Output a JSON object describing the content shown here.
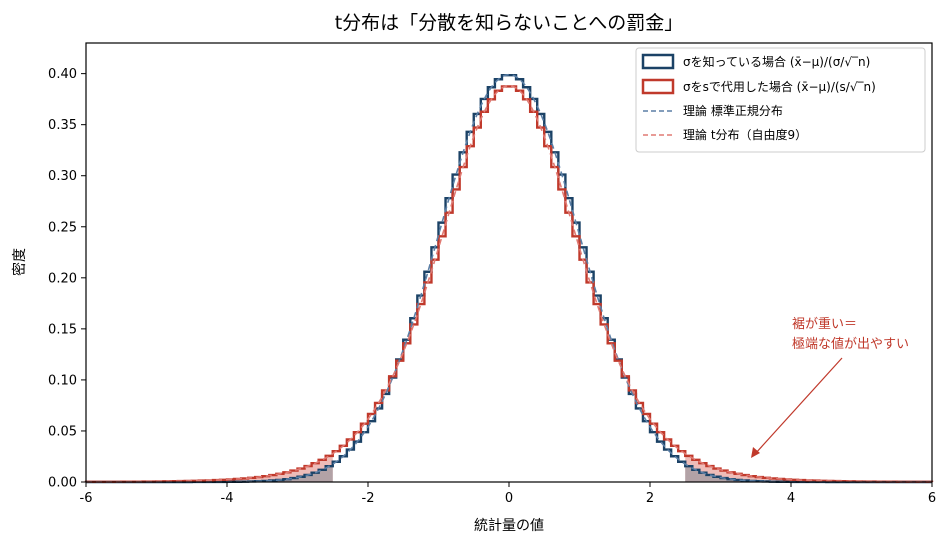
{
  "chart_data": {
    "type": "histogram",
    "title": "t分布は「分散を知らないことへの罰金」",
    "xlabel": "統計量の値",
    "ylabel": "密度",
    "xlim": [
      -6,
      6
    ],
    "ylim": [
      0,
      0.43
    ],
    "xticks": [
      -6,
      -4,
      -2,
      0,
      2,
      4,
      6
    ],
    "xtick_labels": [
      "-6",
      "-4",
      "-2",
      "0",
      "2",
      "4",
      "6"
    ],
    "yticks": [
      0,
      0.05,
      0.1,
      0.15,
      0.2,
      0.25,
      0.3,
      0.35,
      0.4
    ],
    "ytick_labels": [
      "0.00",
      "0.05",
      "0.10",
      "0.15",
      "0.20",
      "0.25",
      "0.30",
      "0.35",
      "0.40"
    ],
    "grid": false,
    "legend_position": "top-right",
    "series": [
      {
        "name": "σを知っている場合 (x̄−μ)/(σ/√‾n)",
        "kind": "step-histogram",
        "color": "#1b4266",
        "distribution": "normal",
        "df": null,
        "bin_width": 0.1
      },
      {
        "name": "σをsで代用した場合 (x̄−μ)/(s/√‾n)",
        "kind": "step-histogram",
        "color": "#c0392b",
        "distribution": "t",
        "df": 9,
        "bin_width": 0.1
      },
      {
        "name": "理論 標準正規分布",
        "kind": "dashed-line",
        "color": "#5b7fa6",
        "distribution": "normal",
        "df": null
      },
      {
        "name": "理論 t分布（自由度9）",
        "kind": "dashed-line",
        "color": "#e07a73",
        "distribution": "t",
        "df": 9
      }
    ],
    "tail_shading": {
      "threshold": 2.5,
      "normal_color": "#9e9aa0",
      "t_color": "#e8a6a0"
    },
    "annotation": {
      "lines": [
        "裾が重い＝",
        "極端な値が出やすい"
      ],
      "arrow_to": [
        3.4,
        0.025
      ],
      "color": "#c0392b"
    }
  }
}
